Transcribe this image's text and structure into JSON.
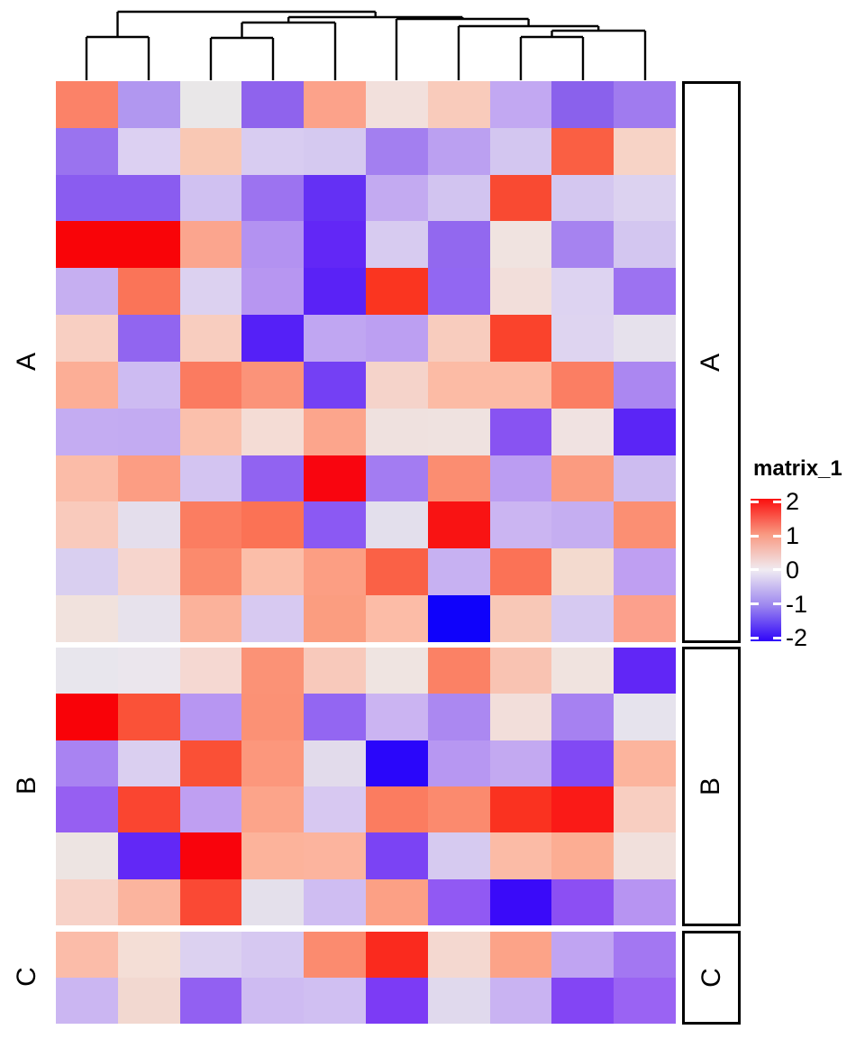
{
  "legend": {
    "title": "matrix_1",
    "ticks": [
      "2",
      "1",
      "0",
      "-1",
      "-2"
    ],
    "gradient": [
      "#fa0f0e",
      "#f99a82",
      "#f0ebf2",
      "#9c86ef",
      "#2f05f9"
    ]
  },
  "row_group_labels": {
    "left": [
      "A",
      "B",
      "C"
    ],
    "right": [
      "A",
      "B",
      "C"
    ]
  },
  "chart_data": {
    "type": "heatmap",
    "title": "matrix_1",
    "n_rows": 20,
    "n_cols": 10,
    "legend_title": "matrix_1",
    "legend_ticks": [
      2,
      1,
      0,
      -1,
      -2
    ],
    "colormap": {
      "breaks": [
        -2,
        0,
        2
      ],
      "colors": [
        "#2f05f9",
        "#ffffff",
        "#fa0f0e"
      ]
    },
    "row_groups": [
      {
        "label": "A",
        "n_rows": 12,
        "row_start": 0
      },
      {
        "label": "B",
        "n_rows": 6,
        "row_start": 12
      },
      {
        "label": "C",
        "n_rows": 2,
        "row_start": 18
      }
    ],
    "column_clustered": true,
    "values": [
      [
        1.1,
        -0.7,
        0.05,
        -1.1,
        0.85,
        0.25,
        0.5,
        -0.55,
        -1.15,
        -0.9
      ],
      [
        -0.95,
        -0.3,
        0.55,
        -0.35,
        -0.4,
        -0.85,
        -0.6,
        -0.4,
        1.4,
        0.4
      ],
      [
        -1.2,
        -1.2,
        -0.45,
        -0.95,
        -1.6,
        -0.55,
        -0.45,
        1.6,
        -0.4,
        -0.35
      ],
      [
        2.2,
        2.2,
        0.8,
        -0.65,
        -1.7,
        -0.4,
        -1.05,
        0.15,
        -0.8,
        -0.4
      ],
      [
        -0.55,
        1.2,
        -0.35,
        -0.65,
        -1.75,
        1.8,
        -1.05,
        0.25,
        -0.3,
        -0.95
      ],
      [
        0.45,
        -1.05,
        0.45,
        -1.8,
        -0.6,
        -0.65,
        0.45,
        1.65,
        -0.3,
        -0.15
      ],
      [
        0.75,
        -0.45,
        1.2,
        0.95,
        -1.45,
        0.35,
        0.6,
        0.6,
        1.15,
        -0.8
      ],
      [
        -0.55,
        -0.55,
        0.55,
        0.3,
        0.8,
        0.15,
        0.15,
        -1.25,
        0.15,
        -1.75
      ],
      [
        0.6,
        0.9,
        -0.4,
        -1.1,
        2.1,
        -0.85,
        1.05,
        -0.6,
        0.9,
        -0.45
      ],
      [
        0.45,
        -0.15,
        1.2,
        1.3,
        -1.2,
        -0.15,
        1.95,
        -0.5,
        -0.55,
        1.05
      ],
      [
        -0.3,
        0.35,
        1.1,
        0.55,
        0.9,
        1.4,
        -0.5,
        1.3,
        0.3,
        -0.65
      ],
      [
        0.2,
        -0.1,
        0.7,
        -0.35,
        0.9,
        0.6,
        -2.05,
        0.5,
        -0.35,
        0.8
      ],
      [
        0.0,
        -0.05,
        0.3,
        1.0,
        0.5,
        0.1,
        1.15,
        0.55,
        0.15,
        -1.7
      ],
      [
        2.2,
        1.5,
        -0.65,
        1.0,
        -1.05,
        -0.5,
        -0.8,
        0.25,
        -0.85,
        -0.1
      ],
      [
        -0.8,
        -0.3,
        1.5,
        0.9,
        -0.2,
        -1.95,
        -0.65,
        -0.55,
        -1.3,
        0.65
      ],
      [
        -1.0,
        1.6,
        -0.65,
        0.8,
        -0.35,
        1.2,
        1.1,
        1.8,
        1.9,
        0.45
      ],
      [
        0.1,
        -1.7,
        2.1,
        0.7,
        0.65,
        -1.4,
        -0.4,
        0.6,
        0.75,
        0.2
      ],
      [
        0.4,
        0.65,
        1.6,
        -0.15,
        -0.45,
        0.85,
        -1.1,
        -1.9,
        -1.2,
        -0.7
      ],
      [
        0.6,
        0.25,
        -0.35,
        -0.4,
        1.15,
        1.85,
        0.3,
        0.8,
        -0.6,
        -0.9
      ],
      [
        -0.5,
        0.3,
        -1.05,
        -0.45,
        -0.45,
        -1.35,
        -0.2,
        -0.55,
        -1.3,
        -1.0
      ]
    ],
    "cell_colors": [
      [
        "#fb8268",
        "#b197f0",
        "#e9e7e8",
        "#8f63ed",
        "#fca28a",
        "#f2e0dc",
        "#f9cbbb",
        "#c2a8f2",
        "#8a61ec",
        "#a07bef"
      ],
      [
        "#9a73ef",
        "#dcd0f2",
        "#f9c8b4",
        "#d8ccf1",
        "#d5c9f0",
        "#a37ff0",
        "#bba0f1",
        "#d3c6f0",
        "#fa5f43",
        "#f7d3c6"
      ],
      [
        "#8a5cf0",
        "#8a5cf0",
        "#d0c1f1",
        "#9c73f0",
        "#6430f4",
        "#c3aaf1",
        "#d2c4f0",
        "#f94a32",
        "#d4c7f0",
        "#dcd2f0"
      ],
      [
        "#f90408",
        "#f90408",
        "#fba58e",
        "#b392f1",
        "#6227f6",
        "#d7cbf0",
        "#9268ef",
        "#f0e3e0",
        "#a683f0",
        "#d3c6f0"
      ],
      [
        "#c6aff1",
        "#fa7458",
        "#dcd1f0",
        "#b796f1",
        "#5a22f6",
        "#fa3520",
        "#9267f2",
        "#f2deda",
        "#ddd3f1",
        "#9c72f1"
      ],
      [
        "#f8cfc2",
        "#9165f0",
        "#f8cdbf",
        "#5520f7",
        "#c0a6f2",
        "#bc9ff2",
        "#f8ccbe",
        "#fa432c",
        "#ded4f0",
        "#e6e1ec"
      ],
      [
        "#fcae96",
        "#cdbbf2",
        "#fb7b60",
        "#fb9379",
        "#7440f4",
        "#f5d3ca",
        "#fcbba5",
        "#fcbba5",
        "#fb7e63",
        "#ab87f1"
      ],
      [
        "#c4acf2",
        "#c3abf2",
        "#fbc0ac",
        "#f4dcd5",
        "#fca58c",
        "#efe1df",
        "#efe2e0",
        "#8853f2",
        "#f0e2e1",
        "#5b25f6"
      ],
      [
        "#fbbca8",
        "#fc9d83",
        "#d3c4f1",
        "#9163f1",
        "#f9050f",
        "#a37cf2",
        "#fb8d71",
        "#bb9df2",
        "#fb9b80",
        "#cdbcf0"
      ],
      [
        "#f9cabc",
        "#e4deec",
        "#fb7d61",
        "#fb7255",
        "#8b59f3",
        "#e3dfec",
        "#f91313",
        "#cbb5f2",
        "#c5aef1",
        "#fb8f73"
      ],
      [
        "#d9cff0",
        "#f6d5cd",
        "#fb8a6d",
        "#fbbea9",
        "#fc9e83",
        "#fa6146",
        "#c7b1f2",
        "#fb7256",
        "#f3dacf",
        "#bf9ff2"
      ],
      [
        "#f1e2dd",
        "#e7e2ec",
        "#fbb29b",
        "#d7c9f1",
        "#fb9d80",
        "#fcbca7",
        "#0f02fb",
        "#f8c8b7",
        "#d6c9f1",
        "#fca08c"
      ],
      [
        "#e8e6ed",
        "#ebe6ed",
        "#f5d8d2",
        "#fb9276",
        "#f8c9bb",
        "#efe4e1",
        "#fb8165",
        "#f9c3b2",
        "#f0e3df",
        "#6126f6"
      ],
      [
        "#f90208",
        "#fa5238",
        "#b796f2",
        "#fb9175",
        "#9366f2",
        "#cbb4f2",
        "#ab88f1",
        "#f2deda",
        "#a681f1",
        "#e6e3ed"
      ],
      [
        "#a983f2",
        "#dacff0",
        "#fa5036",
        "#fc977c",
        "#e2dbeb",
        "#2a06fa",
        "#b797f2",
        "#c3a9f1",
        "#8149f4",
        "#fcb49d"
      ],
      [
        "#965ff2",
        "#fa4530",
        "#bf9ff2",
        "#fca48a",
        "#d7c8f1",
        "#fb7c60",
        "#fb8a6e",
        "#fa3220",
        "#fa1a17",
        "#f8cec1"
      ],
      [
        "#ede4e2",
        "#6228f6",
        "#f9030c",
        "#fcb39b",
        "#fcb49e",
        "#7b43f4",
        "#d6caf0",
        "#fbbba6",
        "#fcad93",
        "#f1e0dc"
      ],
      [
        "#f7d2c8",
        "#fbb49e",
        "#fa4934",
        "#e4e0eb",
        "#cfbdf2",
        "#fca085",
        "#9159f3",
        "#3a0af9",
        "#8c4ff3",
        "#b794f2"
      ],
      [
        "#fbbca9",
        "#f4ded6",
        "#dcd1f0",
        "#d6c8f1",
        "#fb8b6f",
        "#fa2a1e",
        "#f4d8d0",
        "#fca388",
        "#c0a4f2",
        "#a377f2"
      ],
      [
        "#cbb6f2",
        "#f2d8d0",
        "#9260f2",
        "#cebbf2",
        "#d0bff2",
        "#7c3bf5",
        "#e0d9ed",
        "#c9b3f2",
        "#8345f4",
        "#9a63f3"
      ]
    ],
    "dendrogram_segments": [
      [
        96,
        89,
        96,
        41
      ],
      [
        165,
        89,
        165,
        41
      ],
      [
        96,
        41,
        165,
        41
      ],
      [
        130.5,
        41,
        130.5,
        13
      ],
      [
        234,
        89,
        234,
        42
      ],
      [
        303,
        89,
        303,
        42
      ],
      [
        234,
        42,
        303,
        42
      ],
      [
        268.5,
        42,
        268.5,
        25
      ],
      [
        372,
        89,
        372,
        25
      ],
      [
        268.5,
        25,
        372,
        25
      ],
      [
        320.2,
        25,
        320.2,
        19
      ],
      [
        440,
        89,
        440,
        21
      ],
      [
        509,
        89,
        509,
        29
      ],
      [
        578,
        89,
        578,
        41
      ],
      [
        647,
        89,
        647,
        41
      ],
      [
        578,
        41,
        647,
        41
      ],
      [
        612.5,
        41,
        612.5,
        34
      ],
      [
        716,
        89,
        716,
        34
      ],
      [
        612.5,
        34,
        716,
        34
      ],
      [
        664.2,
        34,
        664.2,
        29
      ],
      [
        509,
        29,
        664.2,
        29
      ],
      [
        586.6,
        29,
        586.6,
        21
      ],
      [
        440,
        21,
        586.6,
        21
      ],
      [
        513.3,
        21,
        513.3,
        19
      ],
      [
        320.2,
        19,
        513.3,
        19
      ],
      [
        416.7,
        19,
        416.7,
        13
      ],
      [
        130.5,
        13,
        416.7,
        13
      ]
    ]
  }
}
